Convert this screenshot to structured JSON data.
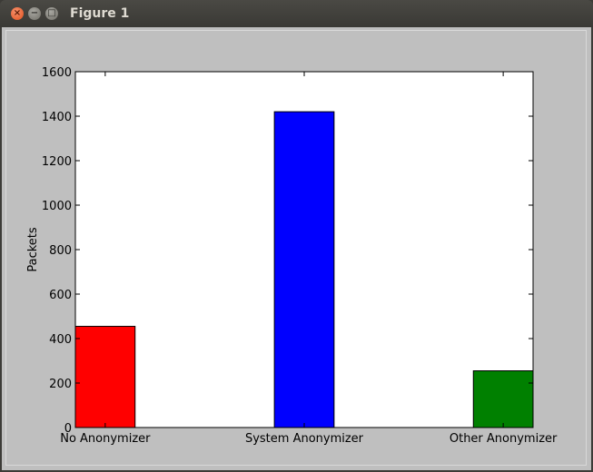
{
  "window": {
    "title": "Figure 1",
    "buttons": {
      "close": "×",
      "minimize": "−",
      "maximize": "□"
    }
  },
  "colors": {
    "figure_background": "#bfbfbf",
    "plot_background": "#ffffff",
    "title_bar": "#3c3b37",
    "bar_edge": "#000000"
  },
  "chart_data": {
    "type": "bar",
    "title": "",
    "xlabel": "",
    "ylabel": "Packets",
    "categories": [
      "No Anonymizer",
      "System Anonymizer",
      "Other Anonymizer"
    ],
    "values": [
      455,
      1420,
      255
    ],
    "bar_colors": [
      "#ff0000",
      "#0000ff",
      "#008000"
    ],
    "ylim": [
      0,
      1600
    ],
    "yticks": [
      0,
      200,
      400,
      600,
      800,
      1000,
      1200,
      1400,
      1600
    ],
    "grid": false,
    "legend": "none"
  }
}
